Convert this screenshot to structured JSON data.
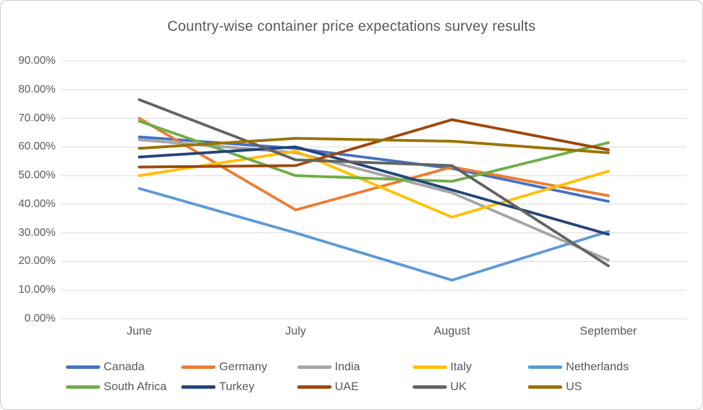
{
  "chart_data": {
    "type": "line",
    "title": "Country-wise container price expectations survey results",
    "categories": [
      "June",
      "July",
      "August",
      "September"
    ],
    "y_axis": {
      "min": 0,
      "max": 90,
      "step": 10,
      "format": "percent",
      "tick_labels": [
        "90.00%",
        "80.00%",
        "70.00%",
        "60.00%",
        "50.00%",
        "40.00%",
        "30.00%",
        "20.00%",
        "10.00%",
        "0.00%"
      ]
    },
    "grid": "horizontal",
    "legend_position": "bottom",
    "series": [
      {
        "name": "Canada",
        "color": "#4472C4",
        "values": [
          63.5,
          59.5,
          52.5,
          41
        ]
      },
      {
        "name": "Germany",
        "color": "#ED7D31",
        "values": [
          70,
          38,
          53,
          43
        ]
      },
      {
        "name": "India",
        "color": "#A5A5A5",
        "values": [
          62.5,
          58,
          44,
          20.5
        ]
      },
      {
        "name": "Italy",
        "color": "#FFC000",
        "values": [
          50,
          58.5,
          35.5,
          51.5
        ]
      },
      {
        "name": "Netherlands",
        "color": "#5B9BD5",
        "values": [
          45.5,
          30,
          13.5,
          30.5
        ]
      },
      {
        "name": "South Africa",
        "color": "#70AD47",
        "values": [
          69,
          50,
          48,
          61.5
        ]
      },
      {
        "name": "Turkey",
        "color": "#264478",
        "values": [
          56.5,
          60,
          45,
          29.5
        ]
      },
      {
        "name": "UAE",
        "color": "#9E480E",
        "values": [
          53,
          53.5,
          69.5,
          59
        ]
      },
      {
        "name": "UK",
        "color": "#636363",
        "values": [
          76.5,
          55.5,
          53.5,
          18.5
        ]
      },
      {
        "name": "US",
        "color": "#997300",
        "values": [
          59.5,
          63,
          62,
          58
        ]
      }
    ]
  },
  "colors": {
    "title_text": "#595959",
    "axis_text": "#595959",
    "gridline": "#D9D9D9",
    "card_border": "#C9C9C9",
    "background": "#FFFFFF"
  }
}
